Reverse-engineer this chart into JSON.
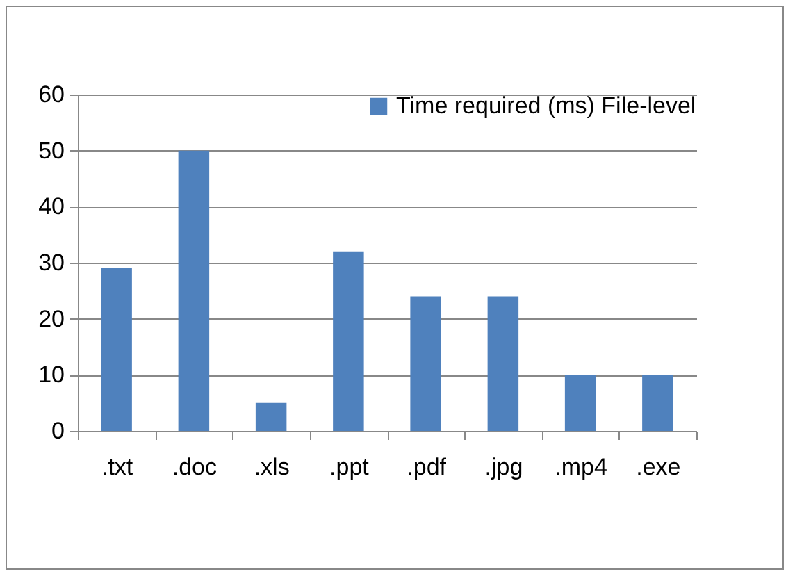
{
  "chart_data": {
    "type": "bar",
    "categories": [
      ".txt",
      ".doc",
      ".xls",
      ".ppt",
      ".pdf",
      ".jpg",
      ".mp4",
      ".exe"
    ],
    "series": [
      {
        "name": "Time required (ms) File-level",
        "color": "#4f81bd",
        "values": [
          29,
          50,
          5,
          32,
          24,
          24,
          10,
          10
        ]
      }
    ],
    "ylim": [
      0,
      60
    ],
    "yticks": [
      0,
      10,
      20,
      30,
      40,
      50,
      60
    ],
    "grid": "y",
    "legend": "top right"
  }
}
